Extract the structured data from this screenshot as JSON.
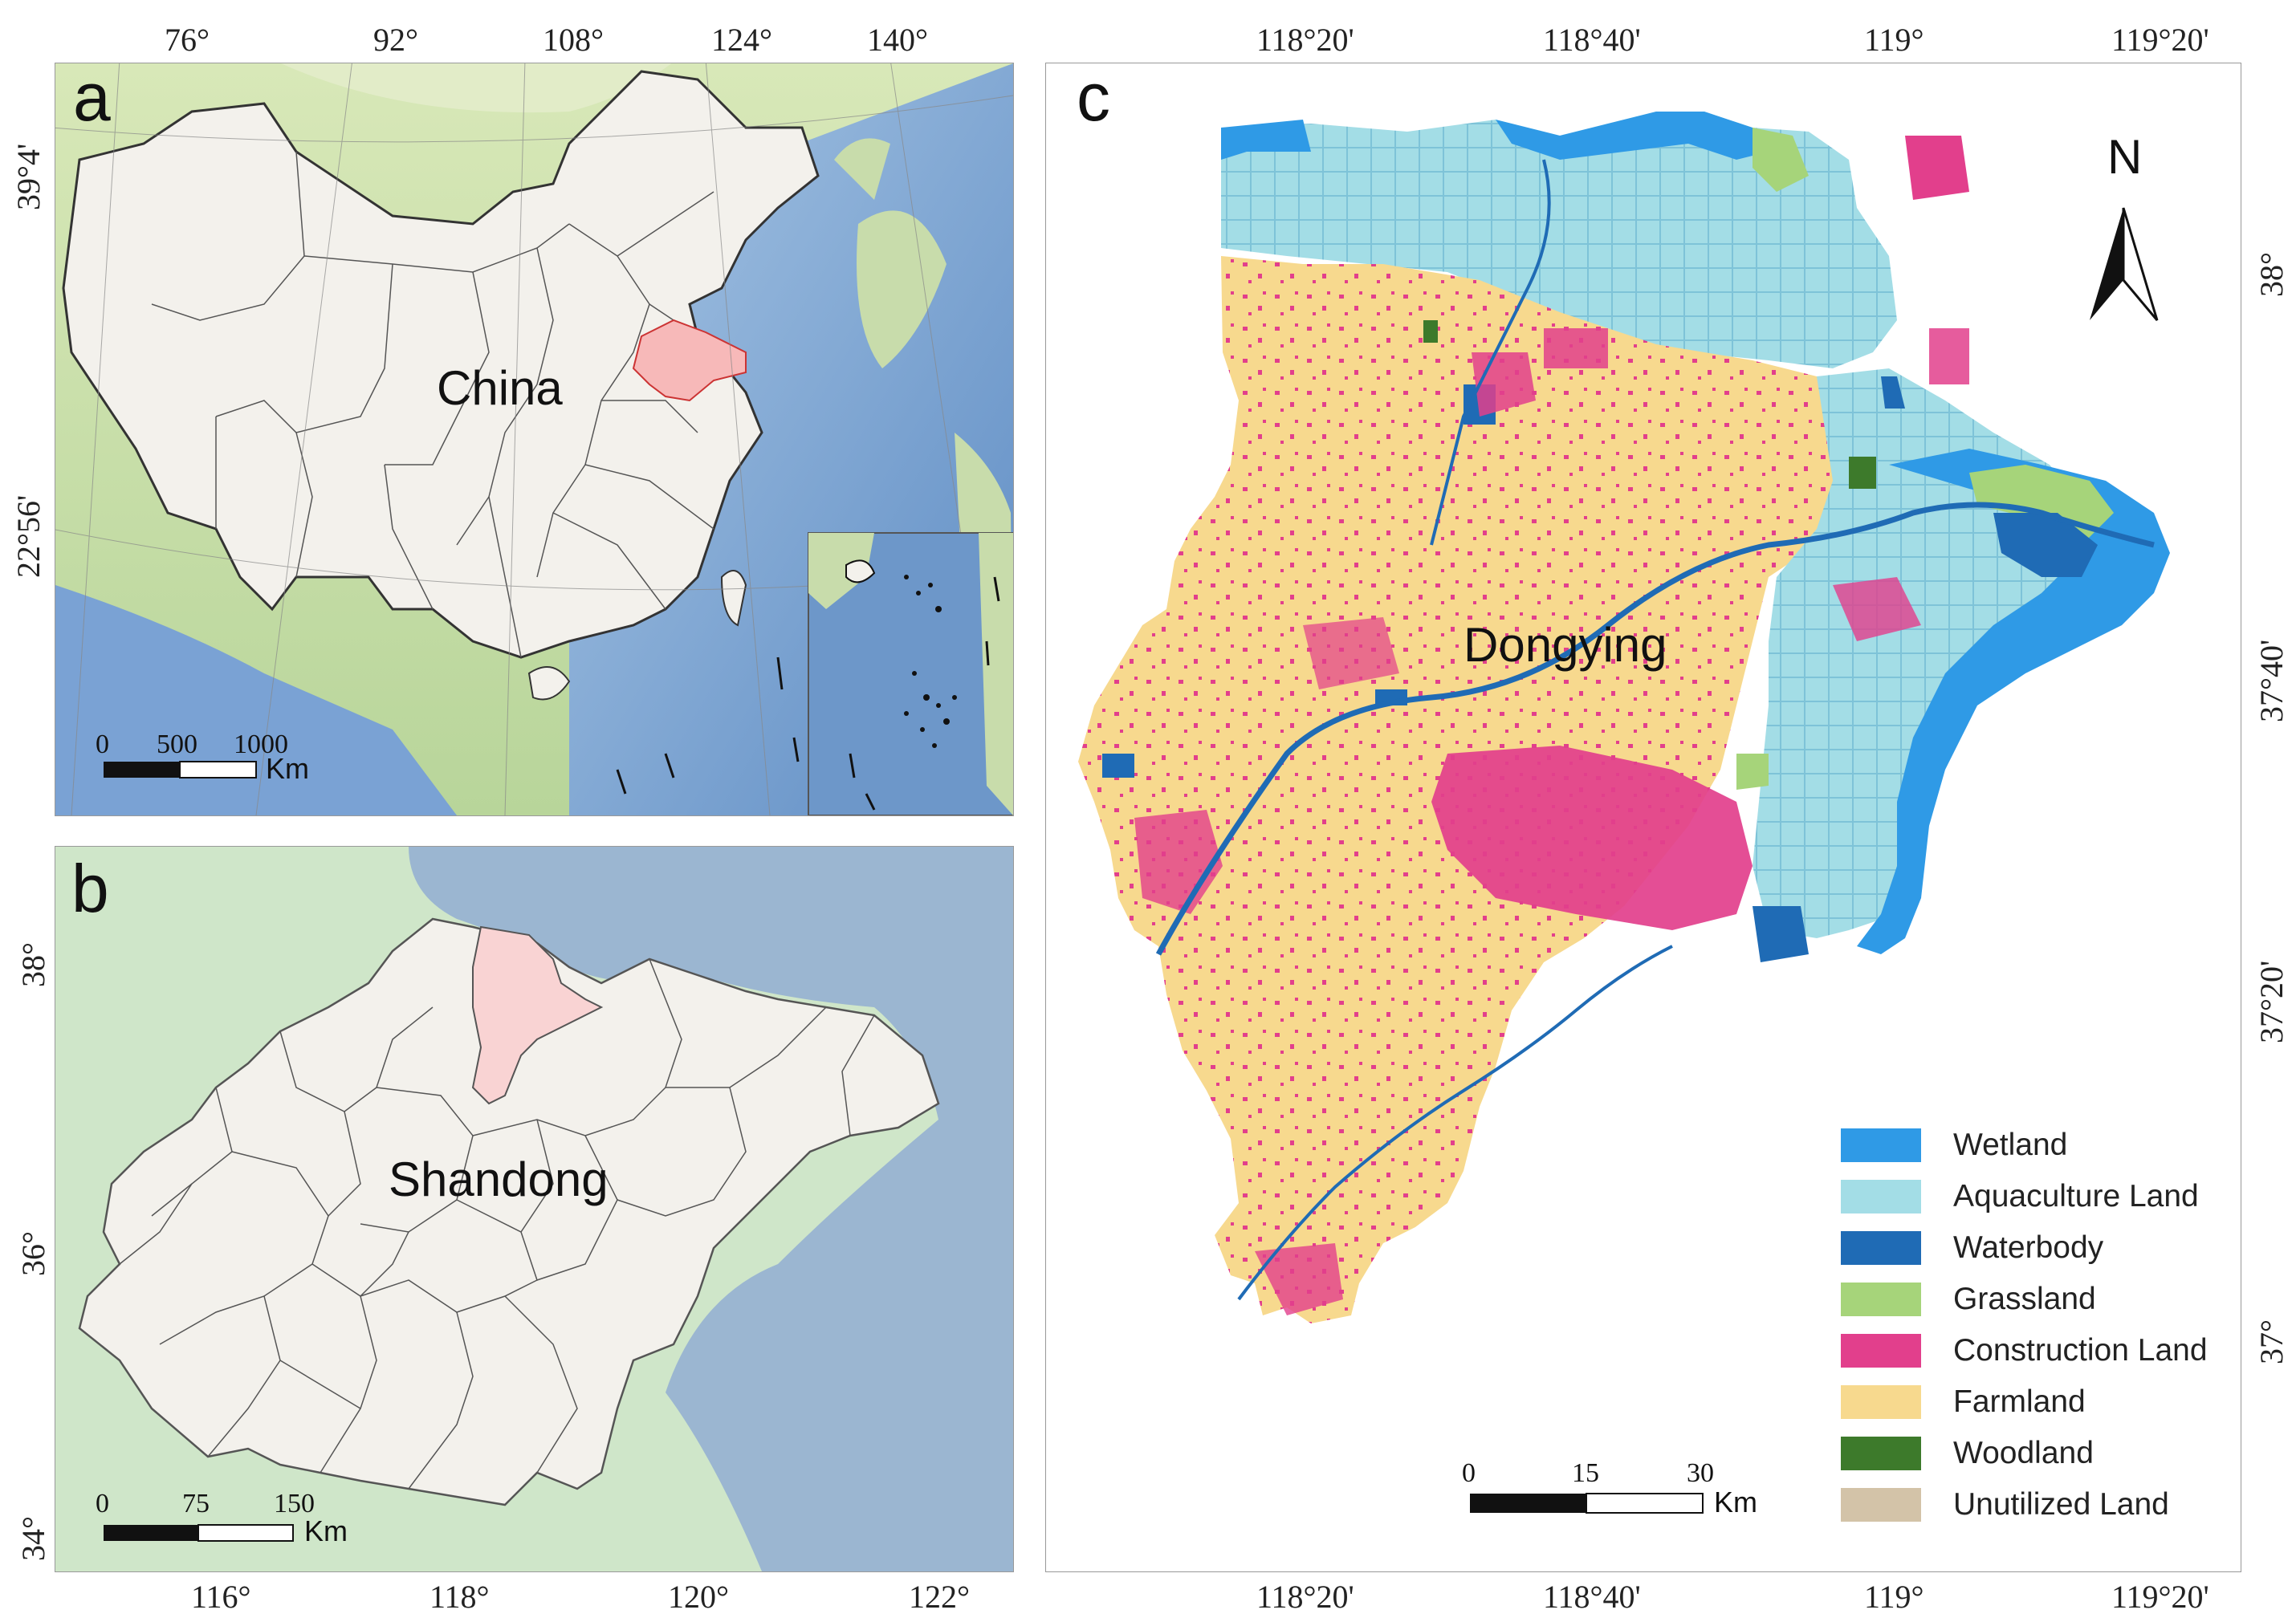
{
  "panels": {
    "a": {
      "letter": "a",
      "top_ticks": [
        "76°",
        "92°",
        "108°",
        "124°",
        "140°"
      ],
      "left_ticks": [
        "39°4'",
        "22°56'"
      ],
      "place_label": "China",
      "highlight_region": "Shandong",
      "scale": {
        "labels": [
          "0",
          "500",
          "1000"
        ],
        "unit": "Km"
      }
    },
    "b": {
      "letter": "b",
      "bottom_ticks": [
        "116°",
        "118°",
        "120°",
        "122°"
      ],
      "left_ticks": [
        "38°",
        "36°",
        "34°"
      ],
      "place_label": "Shandong",
      "highlight_region": "Dongying",
      "scale": {
        "labels": [
          "0",
          "75",
          "150"
        ],
        "unit": "Km"
      }
    },
    "c": {
      "letter": "c",
      "top_ticks": [
        "118°20'",
        "118°40'",
        "119°",
        "119°20'"
      ],
      "bottom_ticks": [
        "118°20'",
        "118°40'",
        "119°",
        "119°20'"
      ],
      "right_ticks": [
        "38°",
        "37°40'",
        "37°20'",
        "37°"
      ],
      "place_label": "Dongying",
      "north_label": "N",
      "scale": {
        "labels": [
          "0",
          "15",
          "30"
        ],
        "unit": "Km"
      },
      "legend": [
        {
          "label": "Wetland",
          "color": "#2f9ae6"
        },
        {
          "label": "Aquaculture Land",
          "color": "#a3dde6"
        },
        {
          "label": "Waterbody",
          "color": "#1f6bb5"
        },
        {
          "label": "Grassland",
          "color": "#a6d47a"
        },
        {
          "label": "Construction Land",
          "color": "#e23f8c"
        },
        {
          "label": "Farmland",
          "color": "#f7d98e"
        },
        {
          "label": "Woodland",
          "color": "#3d7a2b"
        },
        {
          "label": "Unutilized Land",
          "color": "#d3c3a8"
        }
      ]
    }
  },
  "colors": {
    "land": "#f3f1ec",
    "sea": "#8fb4d6",
    "deep_sea": "#5b87bf",
    "terrain_green": "#c9dfb0",
    "highlight": "#f7b9b9",
    "border": "#444444"
  }
}
